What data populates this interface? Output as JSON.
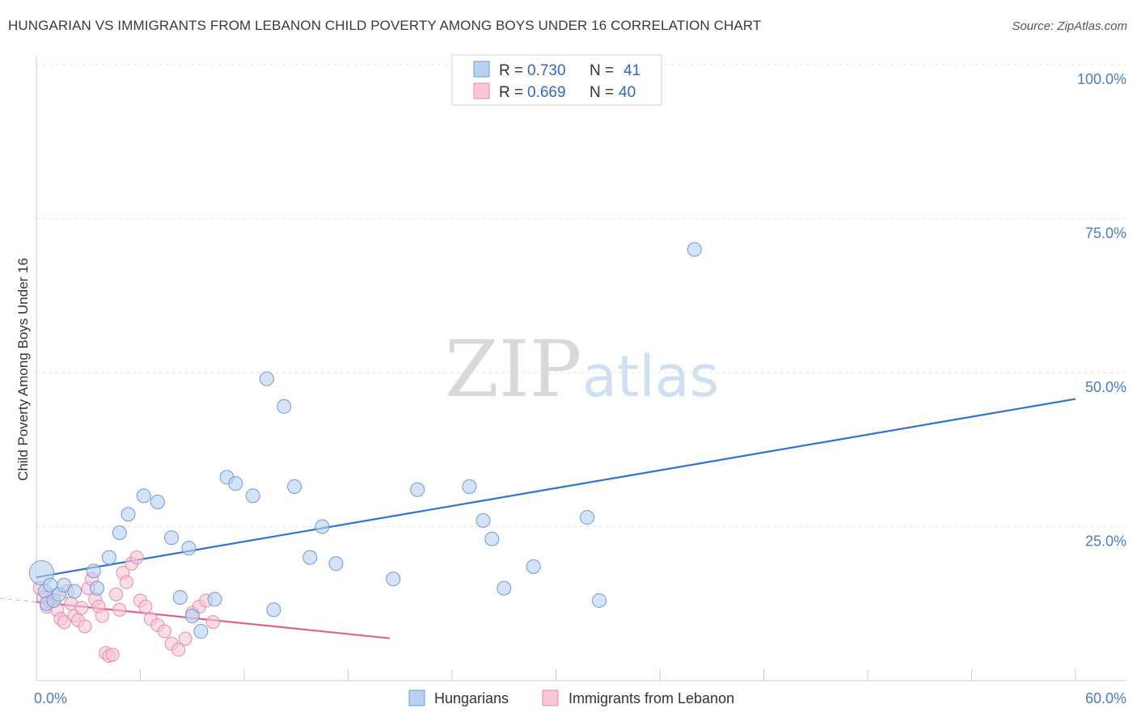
{
  "header": {
    "title": "HUNGARIAN VS IMMIGRANTS FROM LEBANON CHILD POVERTY AMONG BOYS UNDER 16 CORRELATION CHART",
    "source": "Source: ZipAtlas.com"
  },
  "watermark": {
    "zip": "ZIP",
    "atlas": "atlas"
  },
  "colors": {
    "blue_fill": "#b9d1f0",
    "blue_stroke": "#6f9bd8",
    "blue_line": "#2f73d0",
    "pink_fill": "#f8c6d6",
    "pink_stroke": "#e88aa8",
    "pink_line": "#e0628e",
    "grid": "#e3e3e3",
    "tick": "#4a7cc7"
  },
  "chart_data": {
    "type": "scatter",
    "title": "HUNGARIAN VS IMMIGRANTS FROM LEBANON CHILD POVERTY AMONG BOYS UNDER 16 CORRELATION CHART",
    "xlabel": "",
    "ylabel": "Child Poverty Among Boys Under 16",
    "xlim": [
      0,
      60
    ],
    "ylim": [
      0,
      102
    ],
    "x_tick_labels": [
      {
        "value": 0,
        "label": "0.0%"
      },
      {
        "value": 60,
        "label": "60.0%"
      }
    ],
    "y_tick_labels": [
      {
        "value": 25,
        "label": "25.0%"
      },
      {
        "value": 50,
        "label": "50.0%"
      },
      {
        "value": 75,
        "label": "75.0%"
      },
      {
        "value": 100,
        "label": "100.0%"
      }
    ],
    "legend": [
      {
        "name": "Hungarians",
        "r_label": "R =",
        "r": "0.730",
        "n_label": "N =",
        "n": "41"
      },
      {
        "name": "Immigrants from Lebanon",
        "r_label": "R =",
        "r": "0.669",
        "n_label": "N =",
        "n": "40"
      }
    ],
    "series": [
      {
        "name": "Hungarians",
        "points": [
          [
            0.3,
            17.5
          ],
          [
            0.5,
            14.5
          ],
          [
            0.6,
            12.5
          ],
          [
            0.8,
            15.5
          ],
          [
            1.0,
            13.0
          ],
          [
            1.3,
            14.0
          ],
          [
            1.6,
            15.5
          ],
          [
            2.2,
            14.5
          ],
          [
            3.3,
            17.8
          ],
          [
            3.5,
            15.0
          ],
          [
            4.2,
            20.0
          ],
          [
            4.8,
            24.0
          ],
          [
            5.3,
            27.0
          ],
          [
            6.2,
            30.0
          ],
          [
            7.0,
            29.0
          ],
          [
            7.8,
            23.2
          ],
          [
            8.3,
            13.5
          ],
          [
            8.8,
            21.5
          ],
          [
            9.0,
            10.5
          ],
          [
            9.5,
            8.0
          ],
          [
            10.3,
            13.2
          ],
          [
            11.0,
            33.0
          ],
          [
            11.5,
            32.0
          ],
          [
            12.5,
            30.0
          ],
          [
            13.3,
            49.0
          ],
          [
            13.7,
            11.5
          ],
          [
            14.3,
            44.5
          ],
          [
            14.9,
            31.5
          ],
          [
            15.8,
            20.0
          ],
          [
            16.5,
            25.0
          ],
          [
            17.3,
            19.0
          ],
          [
            20.6,
            16.5
          ],
          [
            22.0,
            31.0
          ],
          [
            25.0,
            31.5
          ],
          [
            25.8,
            26.0
          ],
          [
            26.3,
            23.0
          ],
          [
            27.0,
            15.0
          ],
          [
            28.7,
            18.5
          ],
          [
            31.8,
            26.5
          ],
          [
            32.5,
            13.0
          ],
          [
            38.0,
            70.0
          ]
        ]
      },
      {
        "name": "Immigrants from Lebanon",
        "points": [
          [
            0.2,
            15.0
          ],
          [
            0.4,
            13.5
          ],
          [
            0.6,
            12.0
          ],
          [
            0.8,
            12.8
          ],
          [
            1.0,
            13.8
          ],
          [
            1.2,
            11.5
          ],
          [
            1.4,
            10.0
          ],
          [
            1.6,
            9.5
          ],
          [
            1.8,
            14.5
          ],
          [
            2.0,
            12.5
          ],
          [
            2.2,
            10.5
          ],
          [
            2.4,
            9.8
          ],
          [
            2.6,
            11.8
          ],
          [
            2.8,
            8.8
          ],
          [
            3.0,
            15.0
          ],
          [
            3.2,
            16.5
          ],
          [
            3.4,
            13.2
          ],
          [
            3.6,
            12.0
          ],
          [
            3.8,
            10.5
          ],
          [
            4.0,
            4.5
          ],
          [
            4.2,
            4.0
          ],
          [
            4.4,
            4.2
          ],
          [
            4.6,
            14.0
          ],
          [
            4.8,
            11.5
          ],
          [
            5.0,
            17.5
          ],
          [
            5.2,
            16.0
          ],
          [
            5.5,
            19.0
          ],
          [
            5.8,
            20.0
          ],
          [
            6.0,
            13.0
          ],
          [
            6.3,
            12.0
          ],
          [
            6.6,
            10.0
          ],
          [
            7.0,
            9.0
          ],
          [
            7.4,
            8.0
          ],
          [
            7.8,
            6.0
          ],
          [
            8.2,
            5.0
          ],
          [
            8.6,
            6.8
          ],
          [
            9.0,
            11.0
          ],
          [
            9.4,
            12.0
          ],
          [
            9.8,
            13.0
          ],
          [
            10.2,
            9.5
          ]
        ]
      }
    ]
  },
  "axis": {
    "ylabel": "Child Poverty Among Boys Under 16",
    "x_min_label": "0.0%",
    "x_max_label": "60.0%"
  },
  "legend_bottom": {
    "hungarians": "Hungarians",
    "lebanon": "Immigrants from Lebanon"
  }
}
